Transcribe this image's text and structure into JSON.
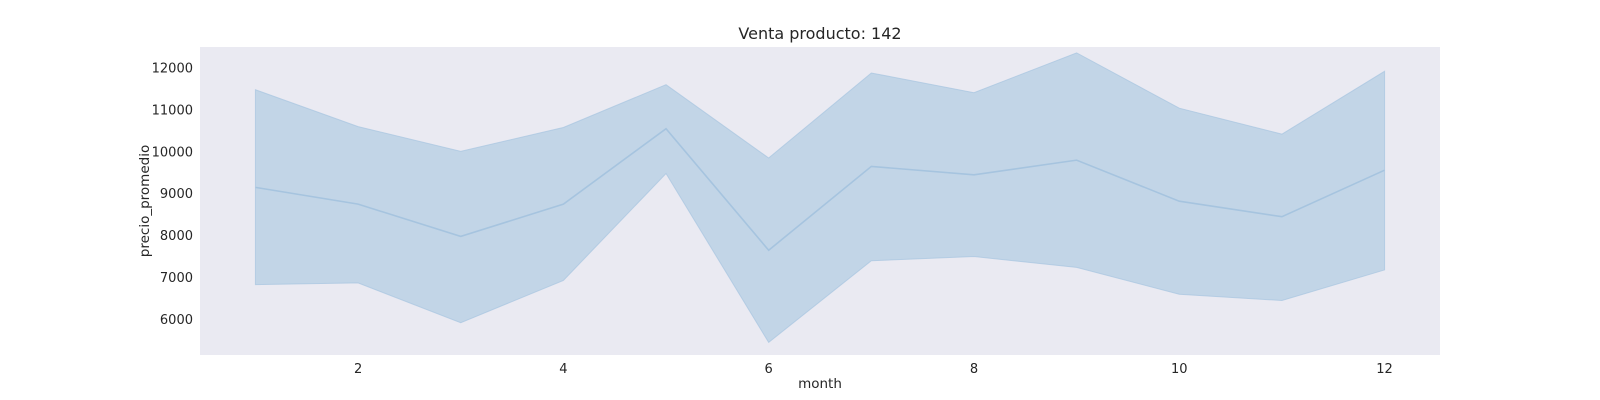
{
  "chart_data": {
    "type": "line",
    "title": "Venta producto: 142",
    "xlabel": "month",
    "ylabel": "precio_promedio",
    "x": [
      1,
      2,
      3,
      4,
      5,
      6,
      7,
      8,
      9,
      10,
      11,
      12
    ],
    "xticks": [
      2,
      4,
      6,
      8,
      10,
      12
    ],
    "yticks": [
      6000,
      7000,
      8000,
      9000,
      10000,
      11000,
      12000
    ],
    "xlim": [
      0.46,
      12.54
    ],
    "ylim": [
      5150,
      12500
    ],
    "grid": false,
    "series": [
      {
        "values": [
          9150,
          8750,
          7980,
          8750,
          10550,
          7650,
          9650,
          9450,
          9800,
          8820,
          8450,
          9560
        ],
        "ci_upper": [
          11480,
          10600,
          10010,
          10580,
          11600,
          9850,
          11880,
          11410,
          12360,
          11040,
          10420,
          11920
        ],
        "ci_lower": [
          6830,
          6870,
          5920,
          6930,
          9480,
          5450,
          7400,
          7500,
          7240,
          6600,
          6450,
          7180
        ],
        "color": "#a6c4df",
        "band_color": "#b4cde3"
      }
    ],
    "background_color": "#eaeaf2"
  }
}
